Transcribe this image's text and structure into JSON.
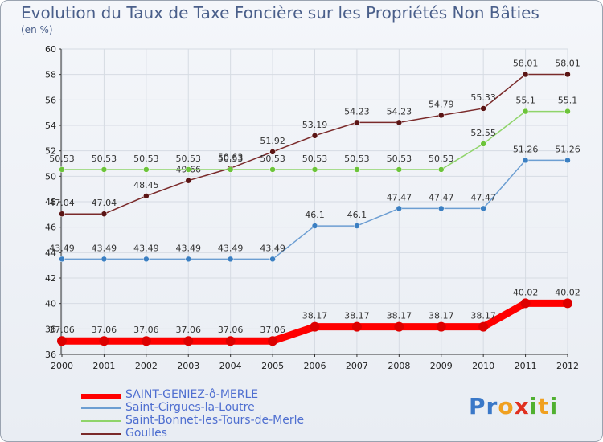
{
  "chart_data": {
    "type": "line",
    "title": "Evolution du Taux de Taxe Foncière sur les Propriétés Non Bâties",
    "subtitle": "(en %)",
    "x": [
      "2000",
      "2001",
      "2002",
      "2003",
      "2004",
      "2005",
      "2006",
      "2007",
      "2008",
      "2009",
      "2010",
      "2011",
      "2012"
    ],
    "ylim": [
      36,
      60
    ],
    "yticks": [
      36,
      38,
      40,
      42,
      44,
      46,
      48,
      50,
      52,
      54,
      56,
      58,
      60
    ],
    "series": [
      {
        "name": "SAINT-GENIEZ-ô-MERLE",
        "color": "#ff0000",
        "marker": "#dd0000",
        "values": [
          37.06,
          37.06,
          37.06,
          37.06,
          37.06,
          37.06,
          38.17,
          38.17,
          38.17,
          38.17,
          38.17,
          40.02,
          40.02
        ],
        "labels": [
          "37.06",
          "37.06",
          "37.06",
          "37.06",
          "37.06",
          "37.06",
          "38.17",
          "38.17",
          "38.17",
          "38.17",
          "38.17",
          "40.02",
          "40.02"
        ]
      },
      {
        "name": "Saint-Cirgues-la-Loutre",
        "color": "#6c9ed2",
        "marker": "#3b7fc2",
        "values": [
          43.49,
          43.49,
          43.49,
          43.49,
          43.49,
          43.49,
          46.1,
          46.1,
          47.47,
          47.47,
          47.47,
          51.26,
          51.26
        ],
        "labels": [
          "43.49",
          "43.49",
          "43.49",
          "43.49",
          "43.49",
          "43.49",
          "46.1",
          "46.1",
          "47.47",
          "47.47",
          "47.47",
          "51.26",
          "51.26"
        ]
      },
      {
        "name": "Saint-Bonnet-les-Tours-de-Merle",
        "color": "#8fd46a",
        "marker": "#6cc43a",
        "values": [
          50.53,
          50.53,
          50.53,
          50.53,
          50.53,
          50.53,
          50.53,
          50.53,
          50.53,
          50.53,
          52.55,
          55.1,
          55.1
        ],
        "labels": [
          "50.53",
          "50.53",
          "50.53",
          "50.53",
          "50.53",
          "50.53",
          "50.53",
          "50.53",
          "50.53",
          "50.53",
          "52.55",
          "55.1",
          "55.1"
        ]
      },
      {
        "name": "Goulles",
        "color": "#7a2a2a",
        "marker": "#5a1414",
        "values": [
          47.04,
          47.04,
          48.45,
          49.66,
          50.63,
          51.92,
          53.19,
          54.23,
          54.23,
          54.79,
          55.33,
          58.01,
          58.01
        ],
        "labels": [
          "47.04",
          "47.04",
          "48.45",
          "49.66",
          "50.63",
          "51.92",
          "53.19",
          "54.23",
          "54.23",
          "54.79",
          "55.33",
          "58.01",
          "58.01"
        ]
      }
    ]
  },
  "legend": {
    "items": [
      {
        "label": "SAINT-GENIEZ-ô-MERLE",
        "color": "#ff0000"
      },
      {
        "label": "Saint-Cirgues-la-Loutre",
        "color": "#6c9ed2"
      },
      {
        "label": "Saint-Bonnet-les-Tours-de-Merle",
        "color": "#8fd46a"
      },
      {
        "label": "Goulles",
        "color": "#7a2a2a"
      }
    ]
  },
  "logo": {
    "letters": [
      "P",
      "r",
      "o",
      "x",
      "i",
      "t",
      "i"
    ],
    "colors": [
      "#3a78c8",
      "#3a78c8",
      "#f0a020",
      "#e03020",
      "#50b030",
      "#f0a020",
      "#50b030"
    ]
  }
}
